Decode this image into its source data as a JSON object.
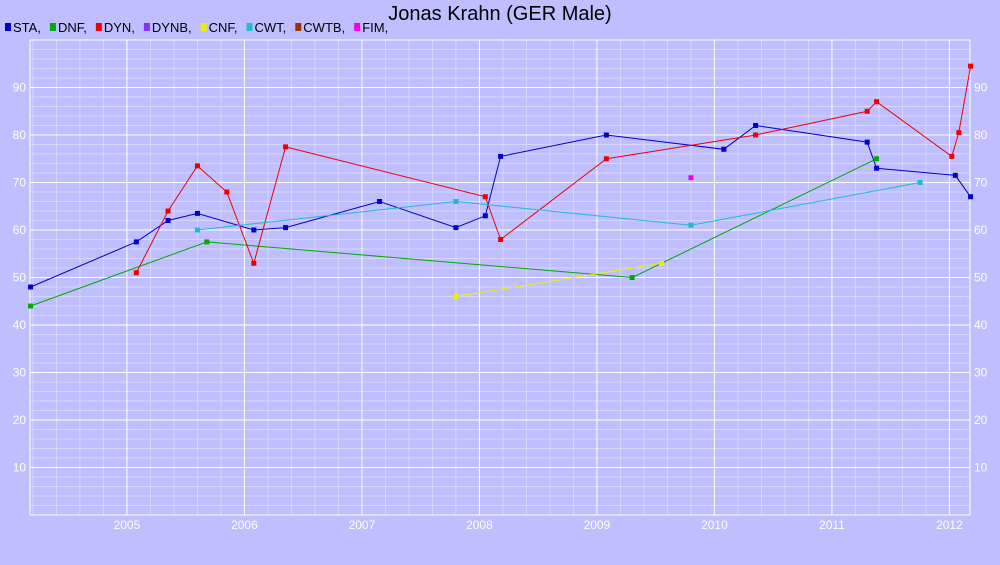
{
  "chart_data": {
    "type": "line",
    "title": "Jonas Krahn (GER Male)",
    "xlabel": "",
    "ylabel": "",
    "xlim": [
      2004.175,
      2012.175
    ],
    "ylim": [
      0,
      100
    ],
    "x_ticks": [
      2005,
      2006,
      2007,
      2008,
      2009,
      2010,
      2011,
      2012
    ],
    "y_ticks": [
      10,
      20,
      30,
      40,
      50,
      60,
      70,
      80,
      90
    ],
    "grid": true,
    "legend_position": "top-left",
    "series": [
      {
        "name": "STA",
        "color": "#0000cc",
        "points": [
          [
            2004.18,
            48
          ],
          [
            2005.08,
            57.5
          ],
          [
            2005.35,
            62
          ],
          [
            2005.6,
            63.5
          ],
          [
            2006.08,
            60
          ],
          [
            2006.35,
            60.5
          ],
          [
            2007.15,
            66
          ],
          [
            2007.8,
            60.5
          ],
          [
            2008.05,
            63
          ],
          [
            2008.18,
            75.5
          ],
          [
            2009.08,
            80
          ],
          [
            2010.08,
            77
          ],
          [
            2010.35,
            82
          ],
          [
            2011.3,
            78.5
          ],
          [
            2011.38,
            73
          ],
          [
            2012.05,
            71.5
          ],
          [
            2012.18,
            67
          ]
        ]
      },
      {
        "name": "DNF",
        "color": "#00aa00",
        "points": [
          [
            2004.18,
            44
          ],
          [
            2005.68,
            57.5
          ],
          [
            2009.3,
            50
          ],
          [
            2011.38,
            75
          ]
        ]
      },
      {
        "name": "DYN",
        "color": "#ee0000",
        "points": [
          [
            2005.08,
            51
          ],
          [
            2005.35,
            64
          ],
          [
            2005.6,
            73.5
          ],
          [
            2005.85,
            68
          ],
          [
            2006.08,
            53
          ],
          [
            2006.35,
            77.5
          ],
          [
            2008.05,
            67
          ],
          [
            2008.18,
            58
          ],
          [
            2009.08,
            75
          ],
          [
            2010.35,
            80
          ],
          [
            2011.3,
            85
          ],
          [
            2011.38,
            87
          ],
          [
            2012.02,
            75.5
          ],
          [
            2012.08,
            80.5
          ],
          [
            2012.18,
            94.5
          ]
        ]
      },
      {
        "name": "DYNB",
        "color": "#8833ee",
        "points": []
      },
      {
        "name": "CNF",
        "color": "#eeee00",
        "points": [
          [
            2007.8,
            46
          ],
          [
            2009.55,
            53
          ]
        ]
      },
      {
        "name": "CWT",
        "color": "#22bbcc",
        "points": [
          [
            2005.6,
            60
          ],
          [
            2007.8,
            66
          ],
          [
            2009.8,
            61
          ],
          [
            2011.75,
            70
          ]
        ]
      },
      {
        "name": "CWTB",
        "color": "#993300",
        "points": []
      },
      {
        "name": "FIM",
        "color": "#ee00ee",
        "points": [
          [
            2009.8,
            71
          ]
        ]
      }
    ]
  }
}
